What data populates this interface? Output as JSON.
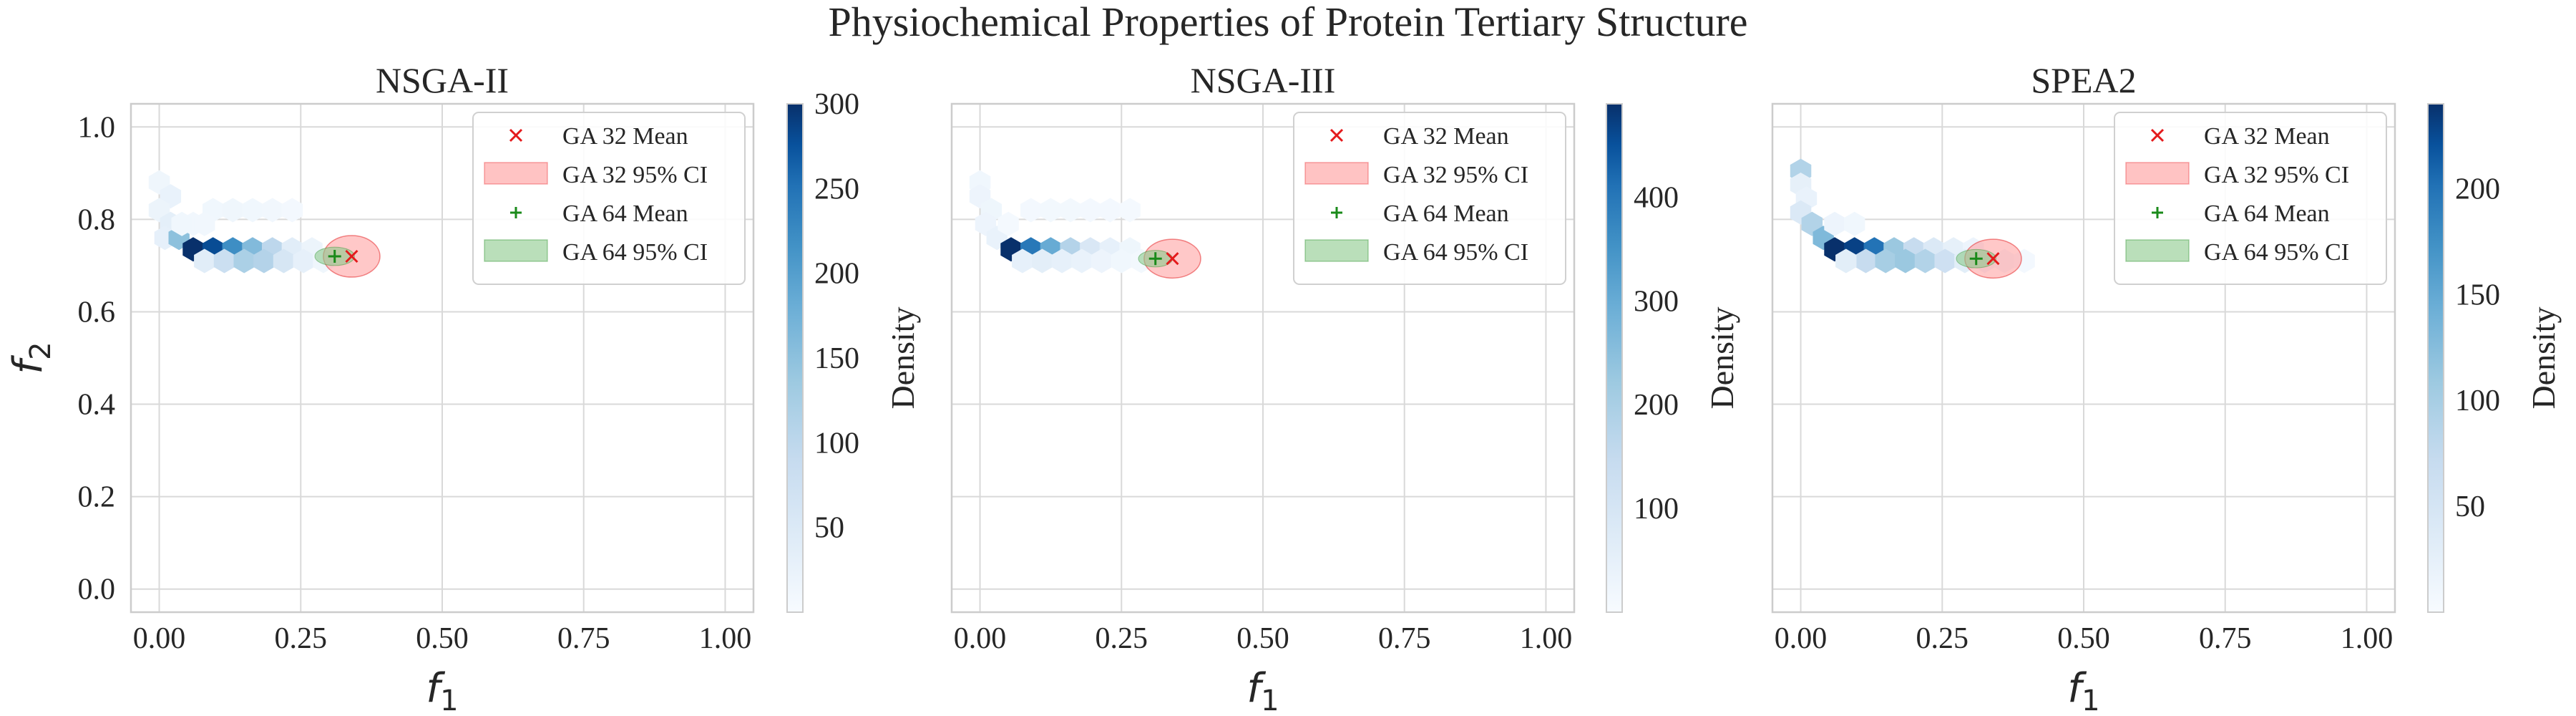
{
  "figure": {
    "title": "Physiochemical Properties of Protein Tertiary Structure"
  },
  "colors": {
    "ga32": "#e41a1c",
    "ga32_fill": "#ff9b9b",
    "ga64": "#1a8a1a",
    "ga64_fill": "#8cc98c",
    "grid": "#d9d9d9",
    "axes_edge": "#cccccc",
    "cmap_low": "#f7fbff",
    "cmap_high": "#08306b"
  },
  "chart_data": [
    {
      "type": "scatter",
      "subtitle": "NSGA-II",
      "xlabel": "f1",
      "ylabel": "f2",
      "xlim": [
        -0.05,
        1.05
      ],
      "ylim": [
        -0.05,
        1.05
      ],
      "xticks": [
        "0.00",
        "0.25",
        "0.50",
        "0.75",
        "1.00"
      ],
      "yticks": [
        "0.0",
        "0.2",
        "0.4",
        "0.6",
        "0.8",
        "1.0"
      ],
      "grid": true,
      "legend_position": "top-right",
      "legend": [
        "GA 32 Mean",
        "GA 32 95% CI",
        "GA 64 Mean",
        "GA 64 95% CI"
      ],
      "colorbar": {
        "label": "Density",
        "min": 0,
        "max": 300,
        "ticks": [
          "50",
          "100",
          "150",
          "200",
          "250",
          "300"
        ]
      },
      "ga32_mean": {
        "x": 0.34,
        "y": 0.72
      },
      "ga32_ci": {
        "rx": 0.05,
        "ry": 0.045
      },
      "ga64_mean": {
        "x": 0.31,
        "y": 0.72
      },
      "ga64_ci": {
        "rx": 0.035,
        "ry": 0.02
      },
      "hexbins": [
        {
          "x": 0.0,
          "y": 0.88,
          "d": 15
        },
        {
          "x": 0.02,
          "y": 0.85,
          "d": 25
        },
        {
          "x": 0.0,
          "y": 0.82,
          "d": 20
        },
        {
          "x": 0.02,
          "y": 0.79,
          "d": 35
        },
        {
          "x": 0.01,
          "y": 0.76,
          "d": 30
        },
        {
          "x": 0.035,
          "y": 0.76,
          "d": 150
        },
        {
          "x": 0.06,
          "y": 0.735,
          "d": 300
        },
        {
          "x": 0.095,
          "y": 0.735,
          "d": 280
        },
        {
          "x": 0.13,
          "y": 0.735,
          "d": 220
        },
        {
          "x": 0.165,
          "y": 0.735,
          "d": 160
        },
        {
          "x": 0.2,
          "y": 0.735,
          "d": 100
        },
        {
          "x": 0.235,
          "y": 0.735,
          "d": 40
        },
        {
          "x": 0.27,
          "y": 0.735,
          "d": 20
        },
        {
          "x": 0.08,
          "y": 0.71,
          "d": 40
        },
        {
          "x": 0.115,
          "y": 0.71,
          "d": 80
        },
        {
          "x": 0.15,
          "y": 0.71,
          "d": 120
        },
        {
          "x": 0.185,
          "y": 0.71,
          "d": 110
        },
        {
          "x": 0.22,
          "y": 0.71,
          "d": 60
        },
        {
          "x": 0.255,
          "y": 0.71,
          "d": 30
        },
        {
          "x": 0.29,
          "y": 0.71,
          "d": 15
        },
        {
          "x": 0.06,
          "y": 0.79,
          "d": 10
        },
        {
          "x": 0.095,
          "y": 0.82,
          "d": 12
        },
        {
          "x": 0.13,
          "y": 0.82,
          "d": 15
        },
        {
          "x": 0.165,
          "y": 0.82,
          "d": 12
        },
        {
          "x": 0.2,
          "y": 0.82,
          "d": 10
        },
        {
          "x": 0.235,
          "y": 0.82,
          "d": 8
        },
        {
          "x": 0.08,
          "y": 0.79,
          "d": 10
        },
        {
          "x": 0.04,
          "y": 0.79,
          "d": 12
        }
      ]
    },
    {
      "type": "scatter",
      "subtitle": "NSGA-III",
      "xlabel": "f1",
      "ylabel": "",
      "xlim": [
        -0.05,
        1.05
      ],
      "ylim": [
        -0.05,
        1.05
      ],
      "xticks": [
        "0.00",
        "0.25",
        "0.50",
        "0.75",
        "1.00"
      ],
      "yticks": [],
      "grid": true,
      "legend_position": "top-right",
      "legend": [
        "GA 32 Mean",
        "GA 32 95% CI",
        "GA 64 Mean",
        "GA 64 95% CI"
      ],
      "colorbar": {
        "label": "Density",
        "min": 0,
        "max": 490,
        "ticks": [
          "100",
          "200",
          "300",
          "400"
        ]
      },
      "ga32_mean": {
        "x": 0.34,
        "y": 0.715
      },
      "ga32_ci": {
        "rx": 0.05,
        "ry": 0.042
      },
      "ga64_mean": {
        "x": 0.31,
        "y": 0.715
      },
      "ga64_ci": {
        "rx": 0.03,
        "ry": 0.018
      },
      "hexbins": [
        {
          "x": 0.0,
          "y": 0.88,
          "d": 20
        },
        {
          "x": 0.0,
          "y": 0.85,
          "d": 30
        },
        {
          "x": 0.02,
          "y": 0.82,
          "d": 25
        },
        {
          "x": 0.01,
          "y": 0.79,
          "d": 30
        },
        {
          "x": 0.03,
          "y": 0.76,
          "d": 40
        },
        {
          "x": 0.055,
          "y": 0.735,
          "d": 490
        },
        {
          "x": 0.09,
          "y": 0.735,
          "d": 400
        },
        {
          "x": 0.125,
          "y": 0.735,
          "d": 300
        },
        {
          "x": 0.16,
          "y": 0.735,
          "d": 180
        },
        {
          "x": 0.195,
          "y": 0.735,
          "d": 90
        },
        {
          "x": 0.23,
          "y": 0.735,
          "d": 50
        },
        {
          "x": 0.265,
          "y": 0.735,
          "d": 25
        },
        {
          "x": 0.075,
          "y": 0.71,
          "d": 50
        },
        {
          "x": 0.11,
          "y": 0.71,
          "d": 60
        },
        {
          "x": 0.145,
          "y": 0.71,
          "d": 50
        },
        {
          "x": 0.18,
          "y": 0.71,
          "d": 40
        },
        {
          "x": 0.215,
          "y": 0.71,
          "d": 30
        },
        {
          "x": 0.25,
          "y": 0.71,
          "d": 20
        },
        {
          "x": 0.285,
          "y": 0.71,
          "d": 15
        },
        {
          "x": 0.09,
          "y": 0.82,
          "d": 12
        },
        {
          "x": 0.125,
          "y": 0.82,
          "d": 15
        },
        {
          "x": 0.16,
          "y": 0.82,
          "d": 15
        },
        {
          "x": 0.195,
          "y": 0.82,
          "d": 12
        },
        {
          "x": 0.23,
          "y": 0.82,
          "d": 12
        },
        {
          "x": 0.265,
          "y": 0.82,
          "d": 10
        },
        {
          "x": 0.05,
          "y": 0.79,
          "d": 10
        }
      ]
    },
    {
      "type": "scatter",
      "subtitle": "SPEA2",
      "xlabel": "f1",
      "ylabel": "",
      "xlim": [
        -0.05,
        1.05
      ],
      "ylim": [
        -0.05,
        1.05
      ],
      "xticks": [
        "0.00",
        "0.25",
        "0.50",
        "0.75",
        "1.00"
      ],
      "yticks": [],
      "grid": true,
      "legend_position": "top-right",
      "legend": [
        "GA 32 Mean",
        "GA 32 95% CI",
        "GA 64 Mean",
        "GA 64 95% CI"
      ],
      "colorbar": {
        "label": "Density",
        "min": 0,
        "max": 240,
        "ticks": [
          "50",
          "100",
          "150",
          "200"
        ]
      },
      "ga32_mean": {
        "x": 0.34,
        "y": 0.715
      },
      "ga32_ci": {
        "rx": 0.05,
        "ry": 0.042
      },
      "ga64_mean": {
        "x": 0.31,
        "y": 0.715
      },
      "ga64_ci": {
        "rx": 0.035,
        "ry": 0.02
      },
      "hexbins": [
        {
          "x": 0.0,
          "y": 0.905,
          "d": 90
        },
        {
          "x": 0.0,
          "y": 0.875,
          "d": 25
        },
        {
          "x": 0.01,
          "y": 0.845,
          "d": 20
        },
        {
          "x": 0.0,
          "y": 0.815,
          "d": 40
        },
        {
          "x": 0.02,
          "y": 0.79,
          "d": 90
        },
        {
          "x": 0.04,
          "y": 0.76,
          "d": 130
        },
        {
          "x": 0.06,
          "y": 0.735,
          "d": 240
        },
        {
          "x": 0.095,
          "y": 0.735,
          "d": 230
        },
        {
          "x": 0.13,
          "y": 0.735,
          "d": 200
        },
        {
          "x": 0.165,
          "y": 0.735,
          "d": 110
        },
        {
          "x": 0.2,
          "y": 0.735,
          "d": 70
        },
        {
          "x": 0.235,
          "y": 0.735,
          "d": 40
        },
        {
          "x": 0.27,
          "y": 0.735,
          "d": 25
        },
        {
          "x": 0.305,
          "y": 0.735,
          "d": 15
        },
        {
          "x": 0.115,
          "y": 0.71,
          "d": 70
        },
        {
          "x": 0.15,
          "y": 0.71,
          "d": 100
        },
        {
          "x": 0.185,
          "y": 0.71,
          "d": 110
        },
        {
          "x": 0.22,
          "y": 0.71,
          "d": 90
        },
        {
          "x": 0.255,
          "y": 0.71,
          "d": 60
        },
        {
          "x": 0.29,
          "y": 0.71,
          "d": 30
        },
        {
          "x": 0.325,
          "y": 0.71,
          "d": 15
        },
        {
          "x": 0.36,
          "y": 0.71,
          "d": 10
        },
        {
          "x": 0.395,
          "y": 0.71,
          "d": 6
        },
        {
          "x": 0.08,
          "y": 0.71,
          "d": 30
        },
        {
          "x": 0.06,
          "y": 0.79,
          "d": 15
        },
        {
          "x": 0.095,
          "y": 0.79,
          "d": 10
        }
      ]
    }
  ]
}
